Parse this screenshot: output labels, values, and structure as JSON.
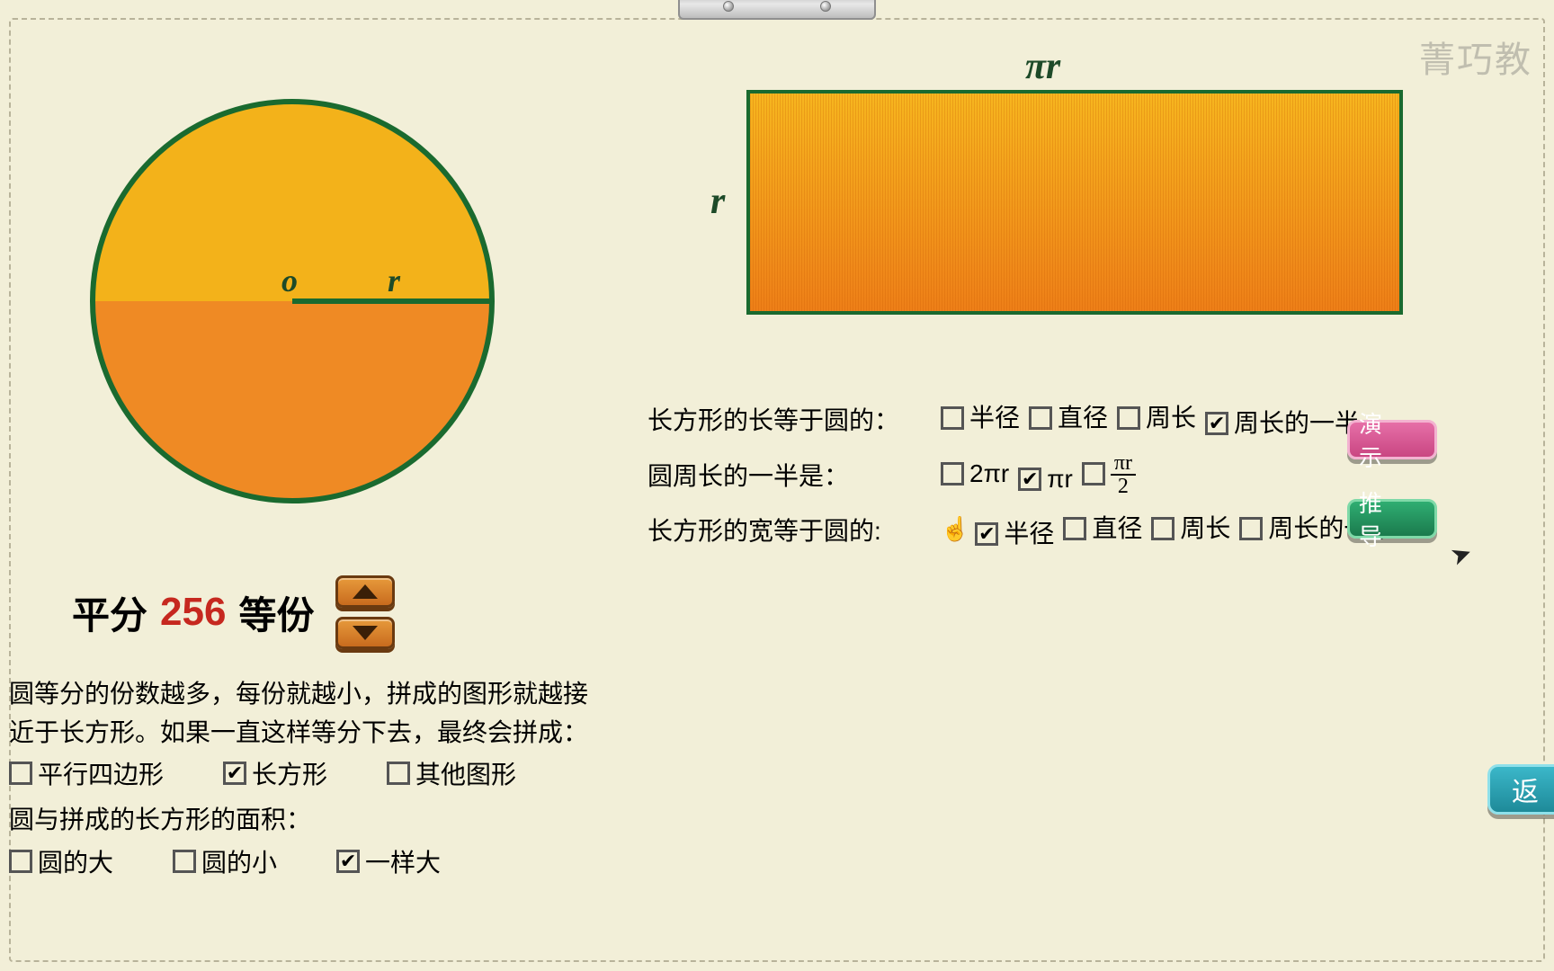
{
  "watermark": "菁巧教",
  "circle": {
    "center_label": "o",
    "radius_label": "r",
    "top_color": "#f3b21a",
    "bottom_color": "#ef8a24",
    "outline_color": "#1a6a2f",
    "radius_line_color": "#1a6a2f"
  },
  "rectangle": {
    "top_label": "πr",
    "left_label": "r",
    "outline_color": "#1a6a2f",
    "grad_top": "#f7b61f",
    "grad_bottom": "#ee7f18"
  },
  "divisions": {
    "prefix": "平分",
    "count": "256",
    "suffix": "等份"
  },
  "explanation": "圆等分的份数越多，每份就越小，拼成的图形就越接近于长方形。如果一直这样等分下去，最终会拼成：",
  "q_left_shape": {
    "options": [
      {
        "label": "平行四边形",
        "checked": false
      },
      {
        "label": "长方形",
        "checked": true
      },
      {
        "label": "其他图形",
        "checked": false
      }
    ]
  },
  "q_left_area_prompt": "圆与拼成的长方形的面积：",
  "q_left_area": {
    "options": [
      {
        "label": "圆的大",
        "checked": false
      },
      {
        "label": "圆的小",
        "checked": false
      },
      {
        "label": "一样大",
        "checked": true
      }
    ]
  },
  "q_right": {
    "row1_prompt": "长方形的长等于圆的：",
    "row1_options": [
      {
        "label": "半径",
        "checked": false
      },
      {
        "label": "直径",
        "checked": false
      },
      {
        "label": "周长",
        "checked": false
      },
      {
        "label": "周长的一半",
        "checked": true
      }
    ],
    "row2_prompt": "圆周长的一半是：",
    "row2_options": [
      {
        "label": "2πr",
        "checked": false
      },
      {
        "label": "πr",
        "checked": true
      },
      {
        "label_frac": {
          "num": "πr",
          "den": "2"
        },
        "checked": false
      }
    ],
    "row3_prompt": "长方形的宽等于圆的:",
    "row3_options": [
      {
        "label": "半径",
        "checked": true
      },
      {
        "label": "直径",
        "checked": false
      },
      {
        "label": "周长",
        "checked": false
      },
      {
        "label": "周长的一半",
        "checked": false
      }
    ]
  },
  "buttons": {
    "demo": "演 示",
    "derive": "推 导",
    "back": "返"
  },
  "colors": {
    "page_bg": "#f2efd8",
    "accent_red": "#c6281f",
    "green_dark": "#1d4a28"
  }
}
